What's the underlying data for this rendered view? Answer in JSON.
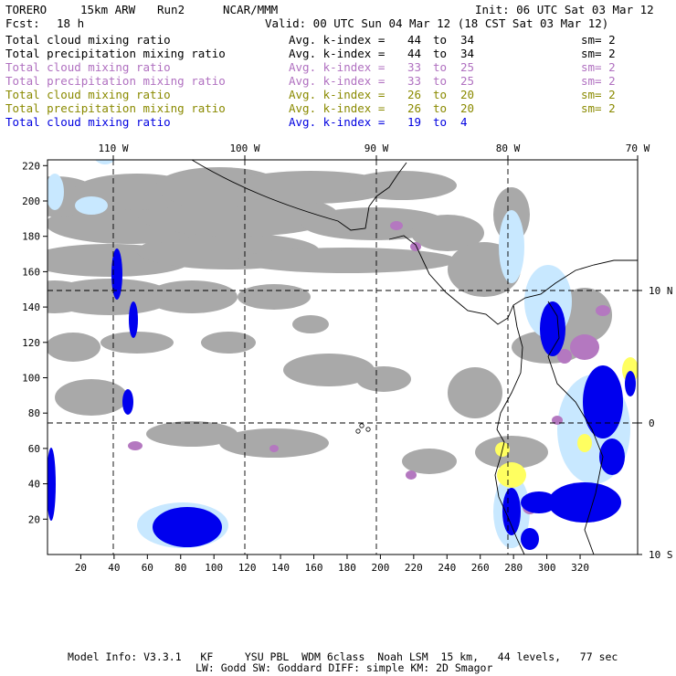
{
  "header": {
    "model": "TORERO",
    "resolution": "15km ARW",
    "run": "Run2",
    "org": "NCAR/MMM",
    "init": "Init: 06 UTC Sat 03 Mar 12",
    "fcst_label": "Fcst:",
    "fcst_value": "18 h",
    "valid": "Valid: 00 UTC Sun 04 Mar 12 (18 CST Sat 03 Mar 12)"
  },
  "legend": [
    {
      "field": "Total cloud mixing ratio",
      "kindex": "Avg. k-index = ",
      "from": "44",
      "to_word": "to",
      "to": "34",
      "sm": "sm= 2",
      "color": "#000000"
    },
    {
      "field": "Total precipitation mixing ratio",
      "kindex": "Avg. k-index = ",
      "from": "44",
      "to_word": "to",
      "to": "34",
      "sm": "sm= 2",
      "color": "#000000"
    },
    {
      "field": "Total cloud mixing ratio",
      "kindex": "Avg. k-index = ",
      "from": "33",
      "to_word": "to",
      "to": "25",
      "sm": "sm= 2",
      "color": "#b070c0"
    },
    {
      "field": "Total precipitation mixing ratio",
      "kindex": "Avg. k-index = ",
      "from": "33",
      "to_word": "to",
      "to": "25",
      "sm": "sm= 2",
      "color": "#b070c0"
    },
    {
      "field": "Total cloud mixing ratio",
      "kindex": "Avg. k-index = ",
      "from": "26",
      "to_word": "to",
      "to": "20",
      "sm": "sm= 2",
      "color": "#8a8a00"
    },
    {
      "field": "Total precipitation mixing ratio",
      "kindex": "Avg. k-index = ",
      "from": "26",
      "to_word": "to",
      "to": "20",
      "sm": "sm= 2",
      "color": "#8a8a00"
    },
    {
      "field": "Total cloud mixing ratio",
      "kindex": "Avg. k-index = ",
      "from": "19",
      "to_word": "to",
      "to": "4",
      "sm": "",
      "color": "#0000e0"
    }
  ],
  "map": {
    "lon_labels": [
      "110 W",
      "100 W",
      "90 W",
      "80 W",
      "70 W"
    ],
    "lat_labels": [
      "10 N",
      "0",
      "10 S"
    ],
    "x_ticks": [
      "20",
      "40",
      "60",
      "80",
      "100",
      "120",
      "140",
      "160",
      "180",
      "200",
      "220",
      "240",
      "260",
      "280",
      "300",
      "320"
    ],
    "y_ticks": [
      "20",
      "40",
      "60",
      "80",
      "100",
      "120",
      "140",
      "160",
      "180",
      "200",
      "220"
    ],
    "colors": {
      "gray": "#a9a9a9",
      "purple": "#b478c0",
      "yellow": "#ffff60",
      "lightblue": "#c8e8ff",
      "blue": "#0000ee"
    }
  },
  "footer": {
    "line1": "Model Info: V3.3.1   KF     YSU PBL  WDM 6class  Noah LSM  15 km,   44 levels,   77 sec",
    "line2": "LW: Godd SW: Goddard DIFF: simple KM: 2D Smagor"
  }
}
